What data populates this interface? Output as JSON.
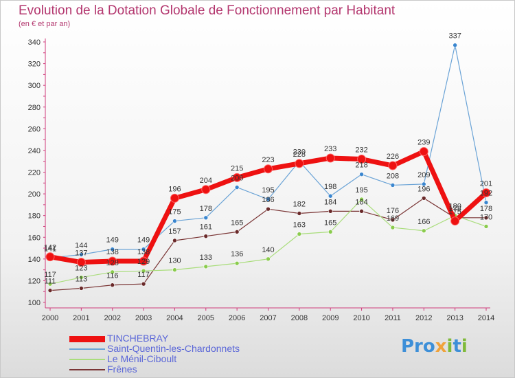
{
  "title": "Evolution de la Dotation Globale de Fonctionnement par Habitant",
  "subtitle": "(en € et par an)",
  "logo": {
    "p1": "Pro",
    "p2": "x",
    "p3": "i",
    "p4": "t",
    "p5": "i"
  },
  "chart_data": {
    "type": "line",
    "x": [
      2000,
      2001,
      2002,
      2003,
      2004,
      2005,
      2006,
      2007,
      2008,
      2009,
      2010,
      2011,
      2012,
      2013,
      2014
    ],
    "ylim": [
      100,
      340
    ],
    "yticks": [
      100,
      120,
      140,
      160,
      180,
      200,
      220,
      240,
      260,
      280,
      300,
      320,
      340
    ],
    "grid": false,
    "legend": "bottom-left",
    "series": [
      {
        "name": "TINCHEBRAY",
        "color": "#ee1111",
        "values": [
          142,
          137,
          138,
          138,
          196,
          204,
          215,
          223,
          228,
          233,
          232,
          226,
          239,
          175,
          201
        ]
      },
      {
        "name": "Saint-Quentin-les-Chardonnets",
        "color": "#6aa3d6",
        "values": [
          141,
          144,
          149,
          149,
          175,
          178,
          206,
          195,
          230,
          198,
          218,
          208,
          209,
          337,
          192
        ]
      },
      {
        "name": "Le Ménil-Ciboult",
        "color": "#a9dd7b",
        "values": [
          117,
          123,
          128,
          129,
          130,
          133,
          136,
          140,
          163,
          165,
          195,
          169,
          166,
          180,
          170
        ]
      },
      {
        "name": "Frênes",
        "color": "#7a3535",
        "values": [
          111,
          113,
          116,
          117,
          157,
          161,
          165,
          186,
          182,
          184,
          184,
          176,
          196,
          178,
          178
        ]
      }
    ]
  }
}
